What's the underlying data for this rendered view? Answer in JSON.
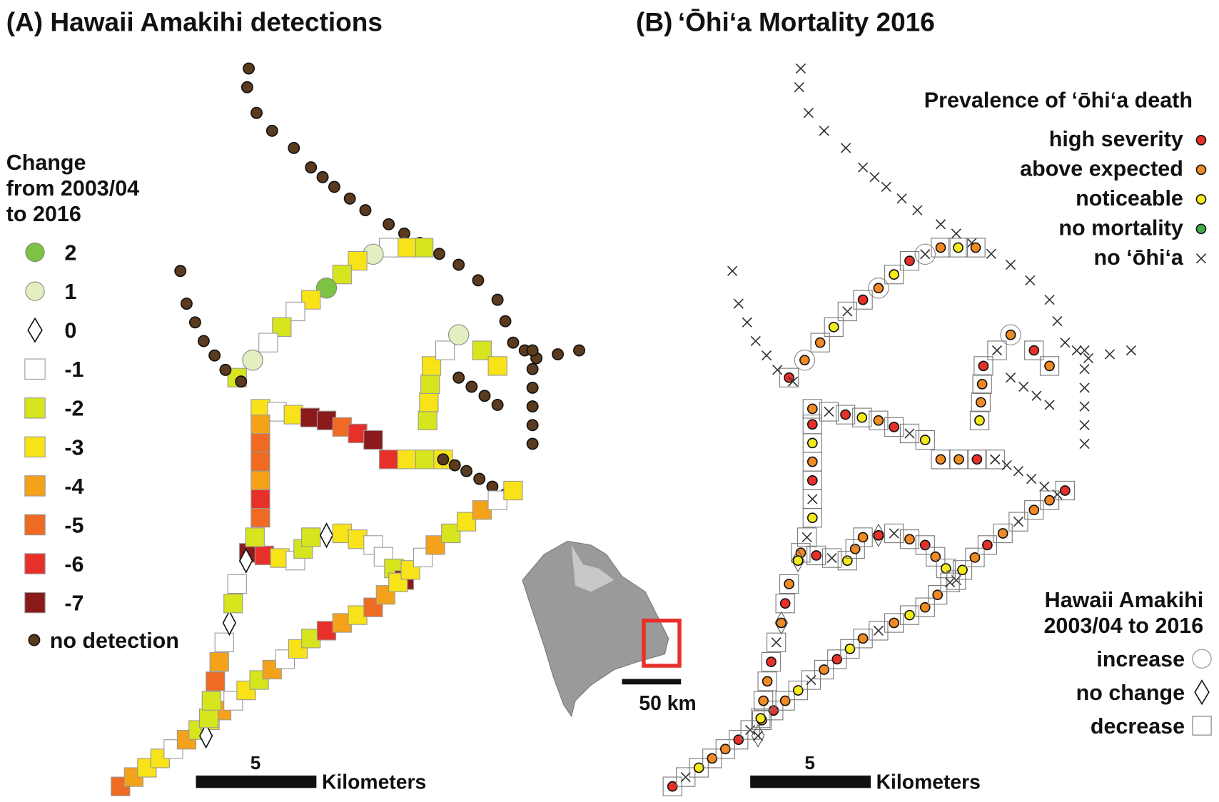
{
  "panel_a": {
    "title": "(A) Hawaii Amakihi detections",
    "legend_title": [
      "Change",
      "from 2003/04",
      "to 2016"
    ],
    "legend": [
      {
        "label": "2",
        "color": "#7dc242",
        "shape": "circle"
      },
      {
        "label": "1",
        "color": "#e3efc0",
        "shape": "circle"
      },
      {
        "label": "0",
        "color": "#ffffff",
        "shape": "diamond"
      },
      {
        "label": "-1",
        "color": "#ffffff",
        "shape": "square"
      },
      {
        "label": "-2",
        "color": "#d6e51e",
        "shape": "square"
      },
      {
        "label": "-3",
        "color": "#f7e317",
        "shape": "square"
      },
      {
        "label": "-4",
        "color": "#f5a21b",
        "shape": "square"
      },
      {
        "label": "-5",
        "color": "#ef6a23",
        "shape": "square"
      },
      {
        "label": "-6",
        "color": "#e8302a",
        "shape": "square"
      },
      {
        "label": "-7",
        "color": "#8b1a1a",
        "shape": "square"
      }
    ],
    "no_detection": "no detection",
    "scale_label": "5",
    "scale_unit": "Kilometers"
  },
  "panel_b": {
    "title": "‘Ōhi‘a Mortality 2016",
    "title_prefix": "(B)",
    "legend_title": "Prevalence of ‘ōhi‘a death",
    "legend": [
      {
        "label": "high severity",
        "color": "#e8302a"
      },
      {
        "label": "above expected",
        "color": "#f08a24"
      },
      {
        "label": "noticeable",
        "color": "#f2ea1d"
      },
      {
        "label": "no mortality",
        "color": "#3fae49"
      },
      {
        "label": "no ‘ōhi‘a",
        "color": "none"
      }
    ],
    "amakihi_title": [
      "Hawaii Amakihi",
      "2003/04 to 2016"
    ],
    "amakihi_legend": [
      "increase",
      "no change",
      "decrease"
    ],
    "scale_label": "5",
    "scale_unit": "Kilometers"
  },
  "inset": {
    "scale_label": "50 km"
  }
}
